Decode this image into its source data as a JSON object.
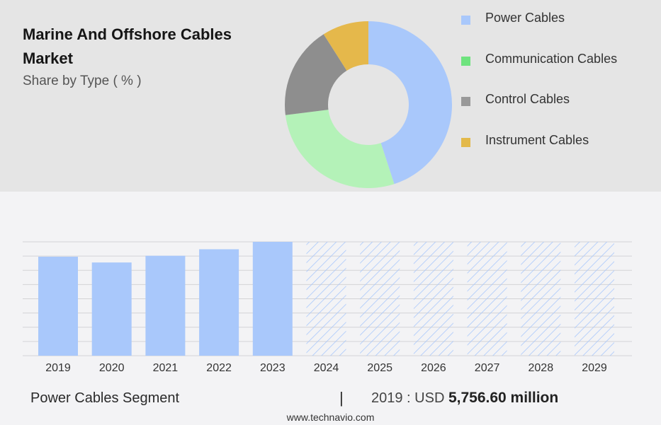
{
  "header": {
    "title": "Marine And Offshore Cables Market",
    "subtitle": "Share by Type ( % )"
  },
  "footer": {
    "segment": "Power Cables Segment",
    "separator": "|",
    "year_label": "2019 : USD",
    "value": "5,756.60 million",
    "source": "www.technavio.com"
  },
  "colors": {
    "power": "#a9c8fb",
    "communication": "#b4f2b8",
    "control": "#8e8e8e",
    "instrument": "#e5b84b",
    "legend_communication": "#6ee37e",
    "legend_control": "#999999",
    "legend_instrument": "#e3b94a",
    "forecast_hatch": "#a9c8fb"
  },
  "chart_data": [
    {
      "type": "pie",
      "subtype": "donut",
      "title": "Share by Type ( % )",
      "categories": [
        "Power Cables",
        "Communication Cables",
        "Control Cables",
        "Instrument Cables"
      ],
      "values": [
        45,
        28,
        18,
        9
      ]
    },
    {
      "type": "bar",
      "categories": [
        "2019",
        "2020",
        "2021",
        "2022",
        "2023",
        "2024",
        "2025",
        "2026",
        "2027",
        "2028",
        "2029"
      ],
      "series": [
        {
          "values": [
            5756.6,
            5420,
            5810,
            6190,
            6620,
            6620,
            6620,
            6620,
            6620,
            6620,
            6620
          ]
        }
      ],
      "forecast_from": "2024",
      "ylim": [
        0,
        6620
      ],
      "grid": true,
      "value_labels": false
    }
  ]
}
